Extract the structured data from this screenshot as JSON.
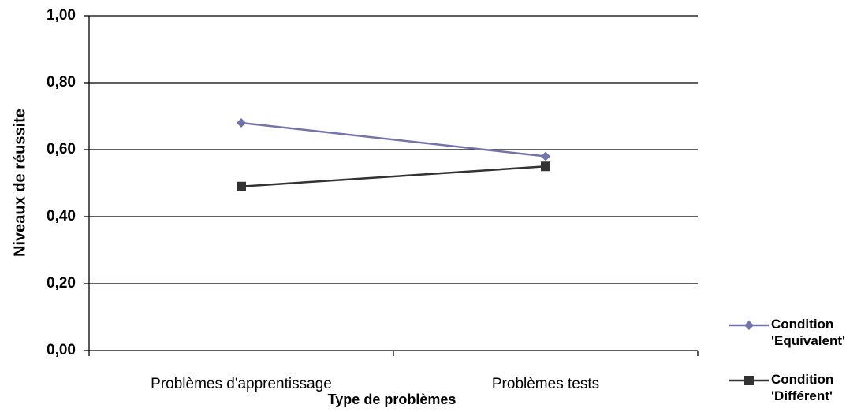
{
  "chart_data": {
    "type": "line",
    "x_label": "Type de problèmes",
    "y_label": "Niveaux de réussite",
    "categories": [
      "Problèmes d'apprentissage",
      "Problèmes tests"
    ],
    "series": [
      {
        "name": "Condition 'Equivalent'",
        "color": "#7474ac",
        "marker": "diamond",
        "values": [
          0.68,
          0.58
        ]
      },
      {
        "name": "Condition 'Différent'",
        "color": "#333333",
        "marker": "square",
        "values": [
          0.49,
          0.55
        ]
      }
    ],
    "ylim": [
      0,
      1
    ],
    "yticks": [
      {
        "value": 0,
        "label": "0,00"
      },
      {
        "value": 0.2,
        "label": "0,20"
      },
      {
        "value": 0.4,
        "label": "0,40"
      },
      {
        "value": 0.6,
        "label": "0,60"
      },
      {
        "value": 0.8,
        "label": "0,80"
      },
      {
        "value": 1,
        "label": "1,00"
      }
    ],
    "grid": true,
    "legend": "right"
  }
}
